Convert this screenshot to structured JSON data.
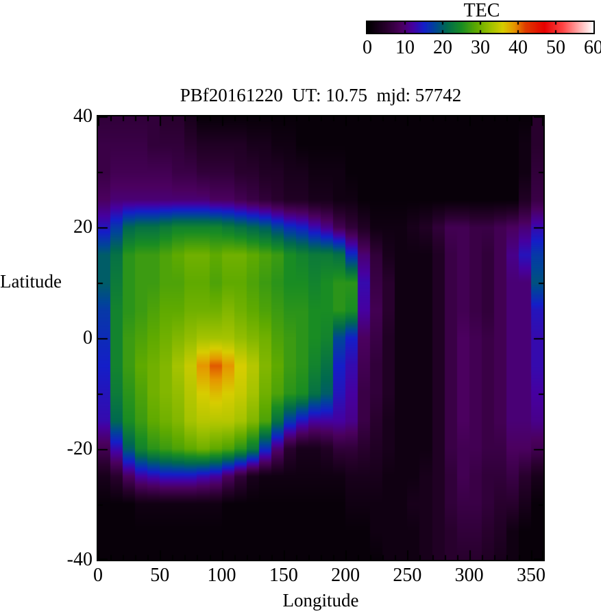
{
  "page": {
    "background": "#ffffff",
    "text_color": "#000000"
  },
  "colorbar": {
    "title": "TEC",
    "tick_labels": [
      "0",
      "10",
      "20",
      "30",
      "40",
      "50",
      "60"
    ],
    "min": 0,
    "max": 60
  },
  "plot": {
    "title": "PBf20161220  UT: 10.75  mjd: 57742",
    "x_axis": {
      "label": "Longitude",
      "range": [
        0,
        360
      ],
      "major_ticks": [
        0,
        50,
        100,
        150,
        200,
        250,
        300,
        350
      ],
      "major_tick_labels": [
        "0",
        "50",
        "100",
        "150",
        "200",
        "250",
        "300",
        "350"
      ],
      "minor_tick_step": 10
    },
    "y_axis": {
      "label": "Latitude",
      "range": [
        -40,
        40
      ],
      "major_ticks": [
        40,
        20,
        0,
        -20,
        -40
      ],
      "major_tick_labels": [
        "40",
        "20",
        "0",
        "-20",
        "-40"
      ],
      "minor_tick_step": 10
    }
  },
  "chart_data": {
    "type": "heatmap",
    "title": "PBf20161220  UT: 10.75  mjd: 57742",
    "colorbar_title": "TEC",
    "xlabel": "Longitude",
    "ylabel": "Latitude",
    "xlim": [
      0,
      360
    ],
    "ylim": [
      -40,
      40
    ],
    "value_range": [
      0,
      60
    ],
    "lon": [
      0,
      10,
      20,
      30,
      40,
      50,
      60,
      70,
      80,
      90,
      100,
      110,
      120,
      130,
      140,
      150,
      160,
      170,
      180,
      190,
      200,
      210,
      220,
      230,
      240,
      250,
      260,
      270,
      280,
      290,
      300,
      310,
      320,
      330,
      340,
      350
    ],
    "lat": [
      40,
      35,
      30,
      25,
      20,
      15,
      10,
      5,
      0,
      -5,
      -10,
      -15,
      -20,
      -25,
      -30,
      -35,
      -40
    ],
    "values": [
      [
        6,
        6,
        6,
        6,
        6,
        5,
        5,
        3,
        1,
        1,
        1,
        1,
        1,
        1,
        1,
        1,
        1,
        1,
        1,
        1,
        1,
        1,
        1,
        1,
        1,
        1,
        1,
        1,
        1,
        1,
        1,
        1,
        1,
        1,
        1,
        5
      ],
      [
        7,
        7,
        7,
        7,
        6,
        6,
        6,
        5,
        4,
        4,
        4,
        4,
        3,
        3,
        2,
        2,
        1,
        1,
        1,
        1,
        1,
        1,
        1,
        1,
        1,
        1,
        1,
        1,
        1,
        1,
        1,
        1,
        1,
        1,
        2,
        5
      ],
      [
        7,
        8,
        8,
        8,
        8,
        8,
        7,
        7,
        6,
        6,
        6,
        5,
        5,
        4,
        4,
        3,
        3,
        2,
        2,
        2,
        1,
        1,
        1,
        1,
        1,
        1,
        1,
        1,
        1,
        1,
        1,
        1,
        1,
        1,
        2,
        6
      ],
      [
        9,
        10,
        10,
        10,
        10,
        10,
        10,
        10,
        10,
        9,
        9,
        8,
        7,
        6,
        5,
        4,
        4,
        3,
        3,
        2,
        2,
        1,
        1,
        1,
        1,
        1,
        1,
        1,
        1,
        1,
        1,
        1,
        1,
        1,
        4,
        7
      ],
      [
        14,
        17,
        21,
        22,
        22,
        23,
        24,
        24,
        24,
        24,
        23,
        22,
        21,
        20,
        18,
        16,
        15,
        13,
        11,
        8,
        6,
        4,
        2,
        2,
        2,
        3,
        4,
        6,
        8,
        8,
        7,
        7,
        8,
        9,
        10,
        13
      ],
      [
        20,
        22,
        26,
        27,
        27,
        28,
        29,
        30,
        30,
        29,
        30,
        30,
        29,
        28,
        27,
        25,
        24,
        23,
        23,
        22,
        16,
        10,
        6,
        3,
        2,
        2,
        2,
        4,
        7,
        8,
        7,
        6,
        8,
        11,
        14,
        17
      ],
      [
        20,
        23,
        26,
        27,
        27,
        28,
        28,
        29,
        29,
        28,
        29,
        29,
        28,
        27,
        26,
        25,
        25,
        24,
        25,
        26,
        26,
        13,
        7,
        5,
        2,
        2,
        2,
        4,
        7,
        8,
        7,
        6,
        8,
        10,
        10,
        19
      ],
      [
        17,
        24,
        26,
        27,
        28,
        29,
        29,
        30,
        30,
        30,
        31,
        30,
        29,
        28,
        27,
        26,
        26,
        25,
        25,
        26,
        25,
        12,
        8,
        5,
        2,
        2,
        2,
        4,
        7,
        8,
        7,
        6,
        8,
        10,
        10,
        14
      ],
      [
        16,
        24,
        27,
        28,
        29,
        30,
        31,
        32,
        33,
        33,
        33,
        32,
        31,
        30,
        28,
        27,
        26,
        25,
        24,
        18,
        15,
        9,
        7,
        4,
        2,
        2,
        2,
        4,
        7,
        9,
        8,
        7,
        8,
        10,
        10,
        13
      ],
      [
        15,
        24,
        27,
        29,
        30,
        31,
        33,
        35,
        39,
        41,
        39,
        36,
        34,
        31,
        29,
        27,
        26,
        24,
        22,
        15,
        13,
        8,
        6,
        4,
        2,
        2,
        2,
        4,
        7,
        9,
        8,
        7,
        8,
        10,
        10,
        13
      ],
      [
        14,
        23,
        26,
        28,
        30,
        31,
        32,
        34,
        36,
        37,
        36,
        35,
        33,
        30,
        28,
        26,
        25,
        22,
        20,
        14,
        12,
        7,
        6,
        4,
        2,
        2,
        2,
        4,
        7,
        9,
        8,
        7,
        8,
        10,
        10,
        12
      ],
      [
        13,
        21,
        25,
        27,
        29,
        30,
        31,
        33,
        34,
        34,
        34,
        33,
        31,
        28,
        22,
        17,
        14,
        12,
        12,
        12,
        11,
        7,
        5,
        3,
        2,
        2,
        2,
        4,
        7,
        9,
        8,
        7,
        8,
        10,
        10,
        11
      ],
      [
        8,
        13,
        20,
        24,
        26,
        27,
        28,
        29,
        30,
        29,
        28,
        26,
        23,
        16,
        10,
        5,
        3,
        3,
        4,
        6,
        6,
        5,
        4,
        3,
        2,
        2,
        2,
        4,
        7,
        8,
        8,
        7,
        7,
        9,
        9,
        8
      ],
      [
        3,
        5,
        9,
        12,
        13,
        14,
        14,
        14,
        13,
        12,
        9,
        6,
        3,
        2,
        2,
        2,
        2,
        2,
        2,
        2,
        3,
        3,
        3,
        2,
        2,
        2,
        3,
        4,
        6,
        8,
        7,
        6,
        6,
        7,
        5,
        3
      ],
      [
        1,
        1,
        1,
        2,
        2,
        2,
        2,
        2,
        2,
        2,
        1,
        1,
        1,
        1,
        1,
        1,
        1,
        1,
        1,
        1,
        2,
        2,
        2,
        2,
        2,
        3,
        3,
        4,
        6,
        7,
        7,
        6,
        5,
        5,
        3,
        1
      ],
      [
        1,
        1,
        1,
        1,
        1,
        1,
        1,
        1,
        1,
        1,
        1,
        1,
        1,
        1,
        1,
        1,
        1,
        1,
        1,
        1,
        1,
        1,
        2,
        2,
        2,
        2,
        3,
        4,
        5,
        6,
        6,
        5,
        4,
        2,
        1,
        1
      ],
      [
        1,
        1,
        1,
        1,
        1,
        1,
        1,
        1,
        1,
        1,
        1,
        1,
        1,
        1,
        1,
        1,
        1,
        1,
        1,
        1,
        1,
        1,
        1,
        2,
        2,
        2,
        3,
        4,
        5,
        5,
        5,
        4,
        3,
        2,
        1,
        1
      ]
    ],
    "colormap_stops": [
      [
        0,
        0,
        0,
        0
      ],
      [
        5,
        40,
        0,
        45
      ],
      [
        9,
        75,
        0,
        95
      ],
      [
        12,
        70,
        0,
        160
      ],
      [
        15,
        20,
        30,
        200
      ],
      [
        18,
        0,
        70,
        150
      ],
      [
        21,
        0,
        105,
        80
      ],
      [
        25,
        25,
        140,
        35
      ],
      [
        29,
        95,
        170,
        0
      ],
      [
        33,
        165,
        195,
        0
      ],
      [
        36,
        215,
        205,
        0
      ],
      [
        39,
        230,
        150,
        0
      ],
      [
        42,
        222,
        60,
        0
      ],
      [
        47,
        230,
        0,
        0
      ],
      [
        52,
        255,
        70,
        70
      ],
      [
        56,
        255,
        165,
        165
      ],
      [
        60,
        255,
        255,
        255
      ]
    ],
    "legend_position": "top",
    "grid": false
  }
}
